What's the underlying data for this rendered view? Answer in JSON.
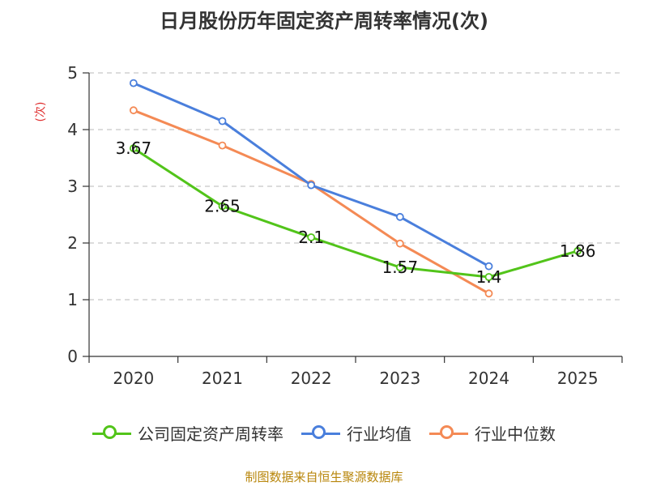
{
  "chart_data": {
    "type": "line",
    "title": "日月股份历年固定资产周转率情况(次)",
    "xlabel": "",
    "ylabel": "(次)",
    "categories": [
      "2020",
      "2021",
      "2022",
      "2023",
      "2024",
      "2025"
    ],
    "ylim": [
      0,
      5
    ],
    "yticks": [
      "0",
      "1",
      "2",
      "3",
      "4",
      "5"
    ],
    "grid": true,
    "legend_position": "bottom",
    "series": [
      {
        "name": "公司固定资产周转率",
        "color": "#52c41a",
        "values": [
          3.67,
          2.65,
          2.1,
          1.57,
          1.4,
          1.86
        ],
        "labels": [
          "3.67",
          "2.65",
          "2.1",
          "1.57",
          "1.4",
          "1.86"
        ]
      },
      {
        "name": "行业均值",
        "color": "#4a7fdc",
        "values": [
          4.82,
          4.15,
          3.02,
          2.46,
          1.59,
          null
        ]
      },
      {
        "name": "行业中位数",
        "color": "#f48a55",
        "values": [
          4.34,
          3.72,
          3.04,
          1.99,
          1.11,
          null
        ]
      }
    ]
  },
  "source_note": "制图数据来自恒生聚源数据库"
}
